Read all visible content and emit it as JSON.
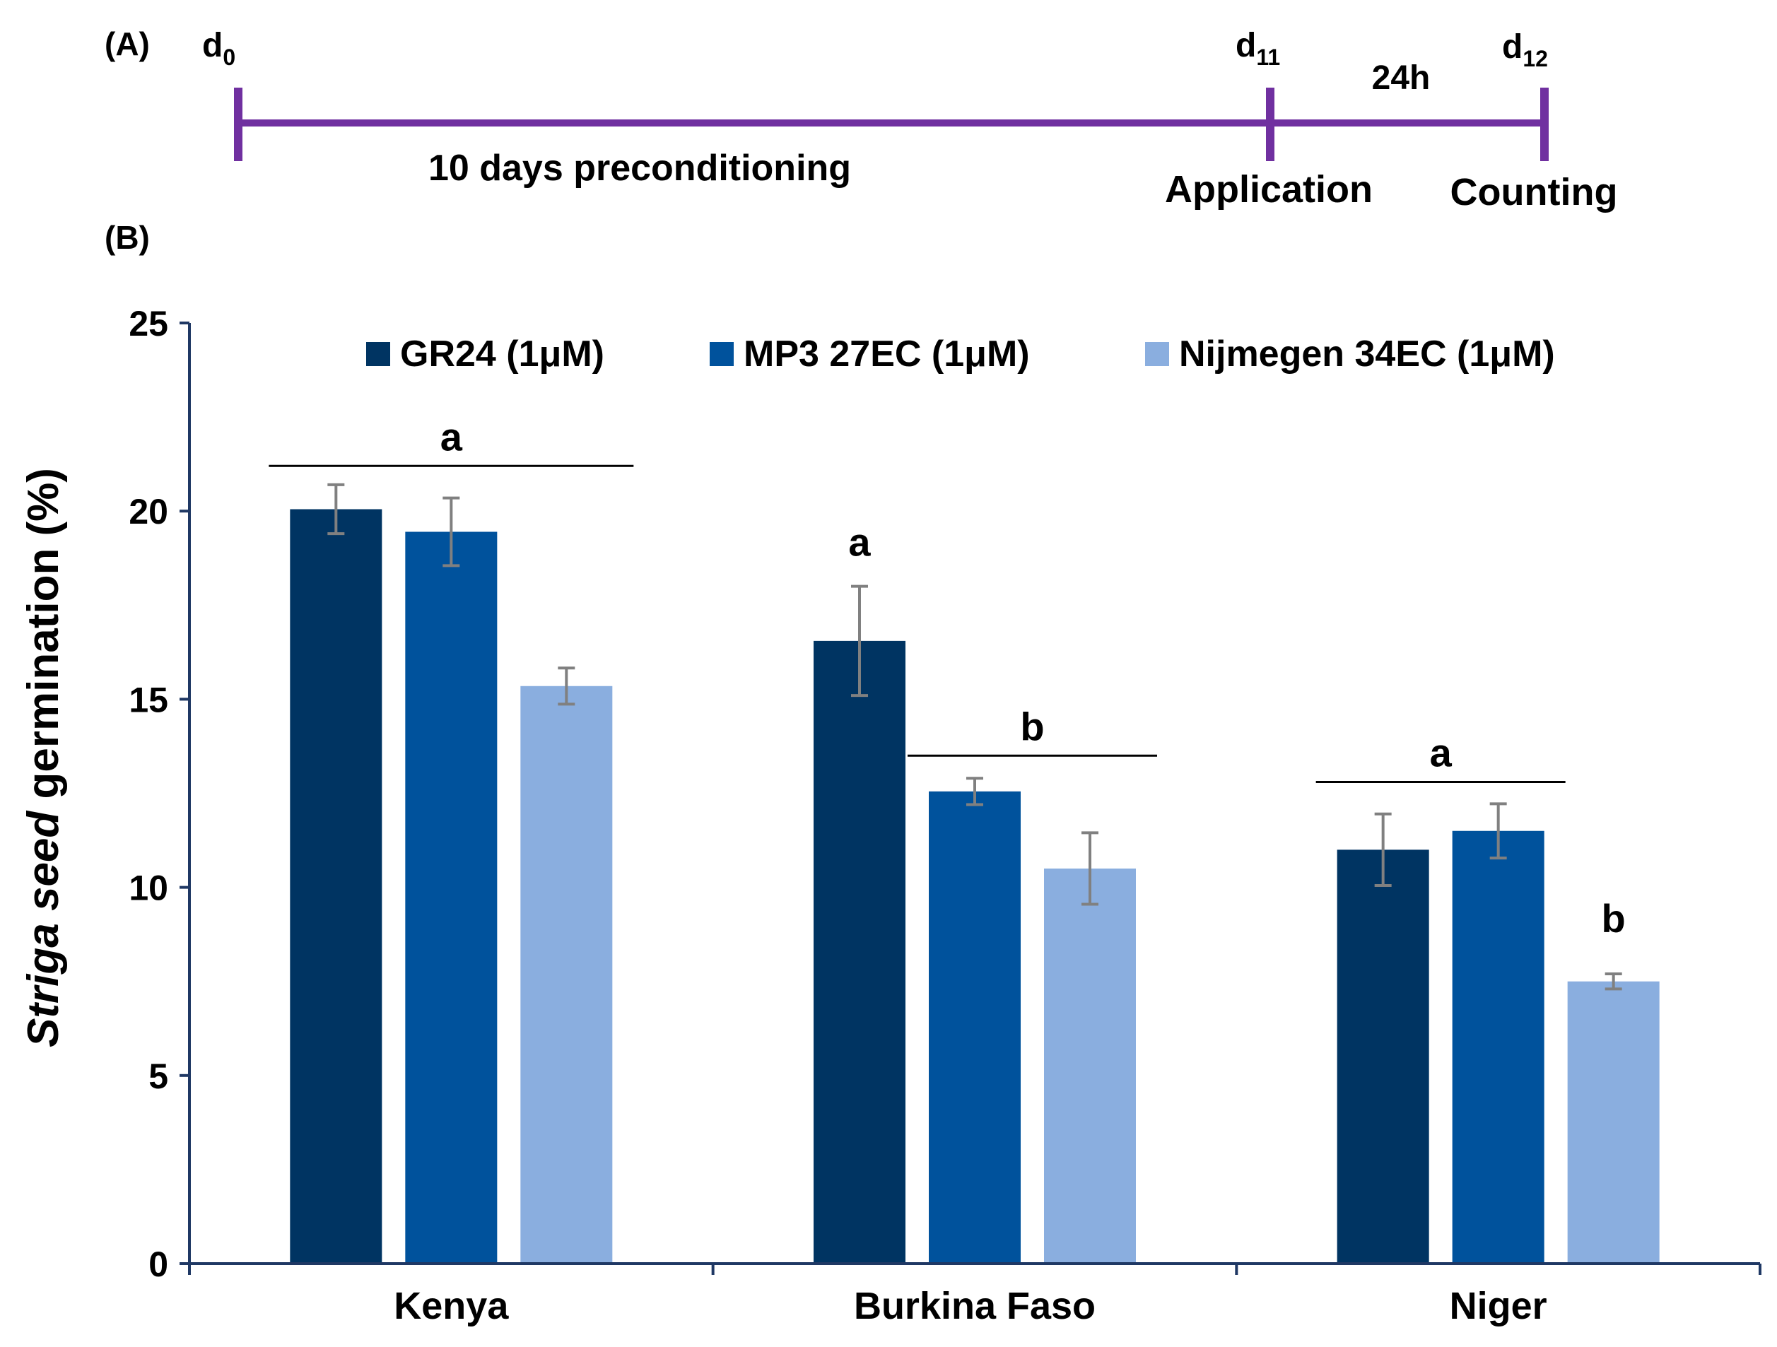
{
  "panel_a": {
    "label": "(A)",
    "days": [
      {
        "base": "d",
        "sub": "0"
      },
      {
        "base": "d",
        "sub": "11"
      },
      {
        "base": "d",
        "sub": "12"
      }
    ],
    "interval_label": "24h",
    "precondition_label": "10 days preconditioning",
    "application_label": "Application",
    "counting_label": "Counting",
    "line_color": "#7030a0"
  },
  "panel_b": {
    "label": "(B)"
  },
  "chart_data": {
    "type": "bar",
    "categories": [
      "Kenya",
      "Burkina Faso",
      "Niger"
    ],
    "series": [
      {
        "name": "GR24 (1μM)",
        "color": "#003462",
        "values": [
          20.05,
          16.55,
          11.0
        ],
        "errors": [
          0.65,
          1.45,
          0.95
        ]
      },
      {
        "name": "MP3 27EC (1μM)",
        "color": "#00529c",
        "values": [
          19.45,
          12.55,
          11.5
        ],
        "errors": [
          0.9,
          0.35,
          0.72
        ]
      },
      {
        "name": "Nijmegen 34EC (1μM)",
        "color": "#8aaedf",
        "values": [
          15.35,
          10.5,
          7.5
        ],
        "errors": [
          0.48,
          0.95,
          0.2
        ]
      }
    ],
    "ylabel_italic": "Striga seed",
    "ylabel_rest": " germination (%)",
    "xlabel": "",
    "ylim": [
      0,
      25
    ],
    "yticks": [
      0,
      5,
      10,
      15,
      20,
      25
    ],
    "grid": false,
    "legend": "top",
    "error_bar_color": "#808080",
    "axis_color": "#1f3864",
    "significance": [
      {
        "category": 0,
        "from_series": 0,
        "to_series": 2,
        "label": "a",
        "y": 21.2
      },
      {
        "category": 1,
        "from_series": 0,
        "to_series": 0,
        "label": "a",
        "y": 18.4
      },
      {
        "category": 1,
        "from_series": 1,
        "to_series": 2,
        "label": "b",
        "y": 13.5
      },
      {
        "category": 2,
        "from_series": 0,
        "to_series": 1,
        "label": "a",
        "y": 12.8
      },
      {
        "category": 2,
        "from_series": 2,
        "to_series": 2,
        "label": "b",
        "y": 8.4
      }
    ]
  }
}
